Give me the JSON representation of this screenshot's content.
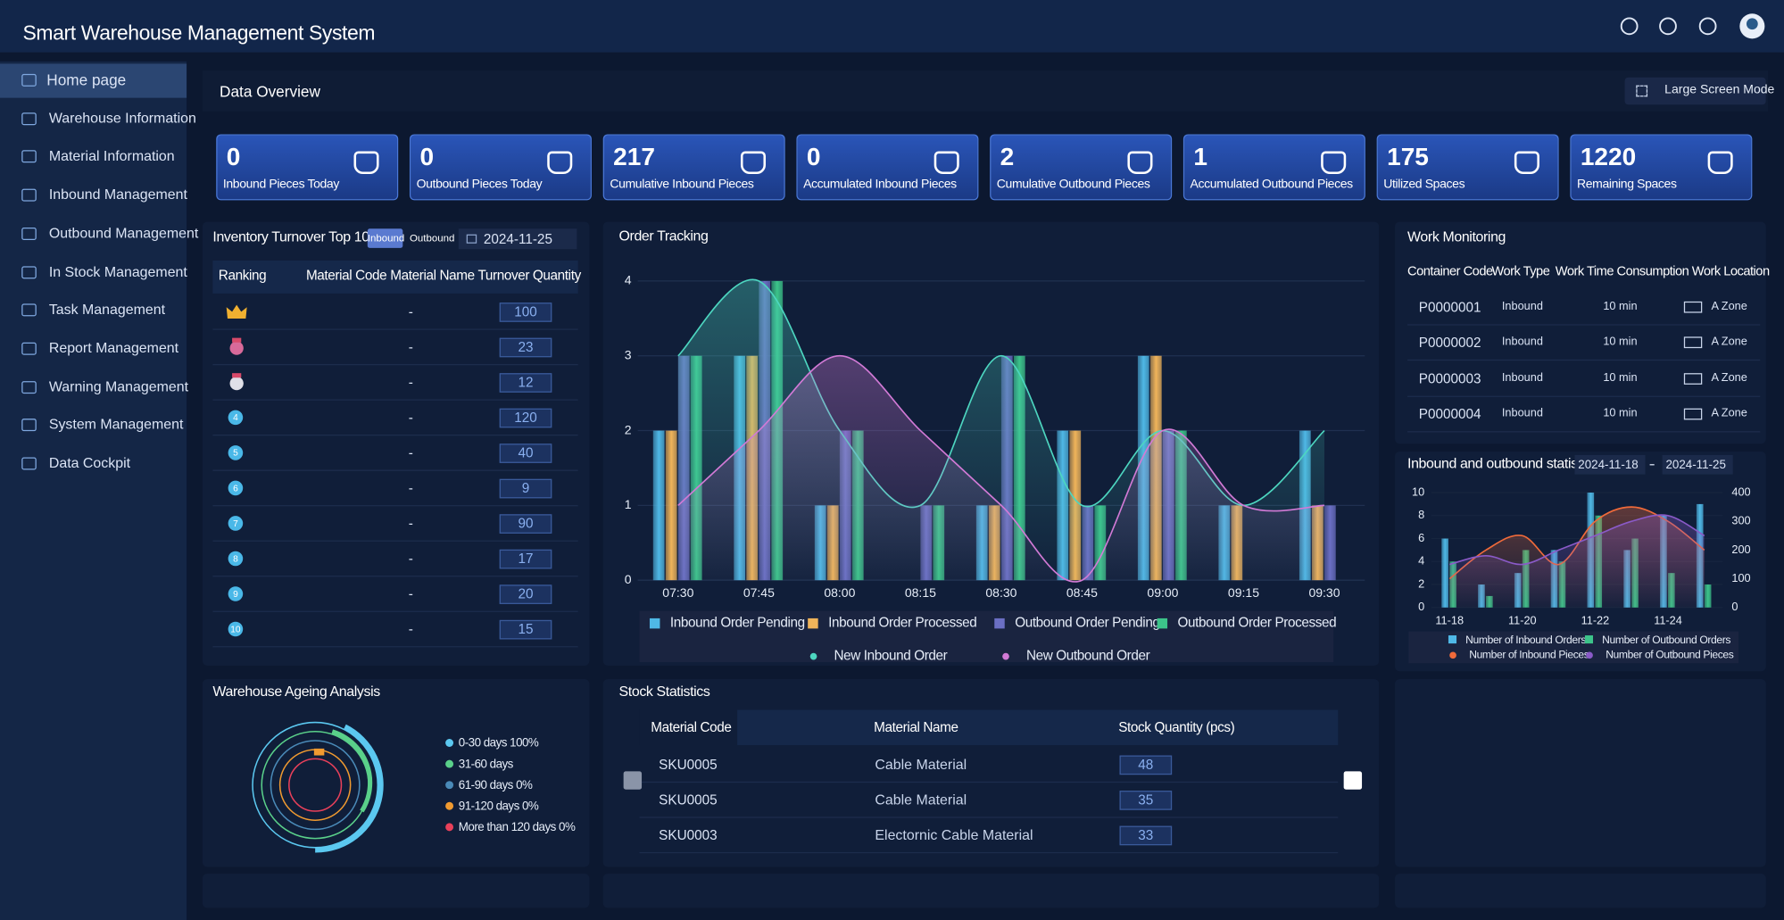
{
  "header": {
    "title": "Smart Warehouse Management System"
  },
  "sidebar": {
    "items": [
      "Home page",
      "Warehouse Information",
      "Material Information",
      "Inbound Management",
      "Outbound Management",
      "In Stock Management",
      "Task Management",
      "Report Management",
      "Warning Management",
      "System Management",
      "Data Cockpit"
    ],
    "active": 0
  },
  "overview": {
    "title": "Data Overview",
    "button": "Large Screen Mode",
    "cards": [
      {
        "value": 0,
        "label": "Inbound Pieces Today"
      },
      {
        "value": 0,
        "label": "Outbound Pieces Today"
      },
      {
        "value": 217,
        "label": "Cumulative Inbound Pieces"
      },
      {
        "value": 0,
        "label": "Accumulated Inbound Pieces"
      },
      {
        "value": 2,
        "label": "Cumulative Outbound Pieces"
      },
      {
        "value": 1,
        "label": "Accumulated Outbound Pieces"
      },
      {
        "value": 175,
        "label": "Utilized Spaces"
      },
      {
        "value": 1220,
        "label": "Remaining Spaces"
      }
    ]
  },
  "inventory": {
    "title": "Inventory Turnover Top 10",
    "tabs": [
      "Inbound",
      "Outbound"
    ],
    "date": "2024-11-25",
    "columns": [
      "Ranking",
      "Material Code",
      "Material Name",
      "Turnover Quantity"
    ],
    "rows": [
      {
        "name": "-",
        "quantity": 100
      },
      {
        "name": "-",
        "quantity": 23
      },
      {
        "name": "-",
        "quantity": 12
      },
      {
        "rank": 4,
        "name": "-",
        "quantity": 120
      },
      {
        "rank": 5,
        "name": "-",
        "quantity": 40
      },
      {
        "rank": 6,
        "name": "-",
        "quantity": 9
      },
      {
        "rank": 7,
        "name": "-",
        "quantity": 90
      },
      {
        "rank": 8,
        "name": "-",
        "quantity": 17
      },
      {
        "rank": 9,
        "name": "-",
        "quantity": 20
      },
      {
        "rank": 10,
        "name": "-",
        "quantity": 15
      }
    ]
  },
  "work_monitoring": {
    "title": "Work Monitoring",
    "columns": [
      "Container Code",
      "Work Type",
      "Work Time Consumption",
      "Work Location"
    ],
    "rows": [
      [
        "P0000001",
        "Inbound",
        "10 min",
        "A Zone"
      ],
      [
        "P0000002",
        "Inbound",
        "10 min",
        "A Zone"
      ],
      [
        "P0000003",
        "Inbound",
        "10 min",
        "A Zone"
      ],
      [
        "P0000004",
        "Inbound",
        "10 min",
        "A Zone"
      ]
    ]
  },
  "ageing": {
    "title": "Warehouse Ageing Analysis",
    "legend": [
      {
        "label": "0-30 days 100%",
        "color": "#5bc8f0"
      },
      {
        "label": "31-60 days",
        "color": "#5ad08a"
      },
      {
        "label": "61-90 days 0%",
        "color": "#4a8ab8"
      },
      {
        "label": "91-120 days 0%",
        "color": "#f09a30"
      },
      {
        "label": "More than 120 days 0%",
        "color": "#e8405a"
      }
    ]
  },
  "stock": {
    "title": "Stock Statistics",
    "columns": [
      "Material Code",
      "Material Name",
      "Stock Quantity (pcs)"
    ],
    "rows": [
      [
        "SKU0005",
        "Cable Material",
        48
      ],
      [
        "SKU0005",
        "Cable Material",
        35
      ],
      [
        "SKU0003",
        "Electornic Cable Material",
        33
      ]
    ]
  },
  "chart_data": [
    {
      "type": "bar",
      "title": "Order Tracking",
      "categories": [
        "07:30",
        "07:45",
        "08:00",
        "08:15",
        "08:30",
        "08:45",
        "09:00",
        "09:15",
        "09:30"
      ],
      "ylim": [
        0,
        4
      ],
      "yticks": [
        0,
        1,
        2,
        3,
        4
      ],
      "grid": true,
      "series": [
        {
          "name": "Inbound Order Pending",
          "color": "#4fb8e6",
          "values": [
            2,
            3,
            1,
            0,
            1,
            2,
            3,
            1,
            2
          ]
        },
        {
          "name": "Inbound Order Processed",
          "color": "#f0b45a",
          "values": [
            2,
            3,
            1,
            0,
            1,
            2,
            3,
            1,
            1
          ]
        },
        {
          "name": "Outbound Order Pending",
          "color": "#6b6fc4",
          "values": [
            3,
            4,
            2,
            1,
            3,
            1,
            2,
            0,
            1
          ]
        },
        {
          "name": "Outbound Order Processed",
          "color": "#3cc48a",
          "values": [
            3,
            4,
            2,
            1,
            3,
            1,
            2,
            0,
            0
          ]
        },
        {
          "name": "New Inbound Order",
          "type": "line",
          "color": "#4dd6c0",
          "values": [
            3,
            4,
            2,
            1,
            3,
            1,
            2,
            1,
            2
          ]
        },
        {
          "name": "New Outbound Order",
          "type": "line",
          "color": "#d27ad6",
          "values": [
            1,
            2,
            3,
            2,
            1,
            0,
            2,
            1,
            1
          ]
        }
      ]
    },
    {
      "type": "bar",
      "title": "Inbound and outbound statistics",
      "date_range": [
        "2024-11-18",
        "2024-11-25"
      ],
      "categories": [
        "11-18",
        null,
        "11-20",
        null,
        "11-22",
        null,
        "11-24",
        null
      ],
      "ylim": [
        0,
        10
      ],
      "yticks": [
        0,
        2,
        4,
        6,
        8,
        10
      ],
      "y2lim": [
        0,
        400
      ],
      "y2ticks": [
        0,
        100,
        200,
        300,
        400
      ],
      "series": [
        {
          "name": "Number of Inbound Orders",
          "color": "#4fb8e6",
          "values": [
            6,
            2,
            3,
            5,
            10,
            5,
            8,
            9
          ]
        },
        {
          "name": "Number of Outbound Orders",
          "color": "#3cc48a",
          "values": [
            4,
            1,
            5,
            4,
            8,
            6,
            3,
            2
          ]
        },
        {
          "name": "Number of Inbound Pieces",
          "type": "line",
          "axis": "y2",
          "color": "#f06a3a",
          "values": [
            100,
            200,
            250,
            150,
            300,
            350,
            300,
            200
          ]
        },
        {
          "name": "Number of Outbound Pieces",
          "type": "line",
          "axis": "y2",
          "color": "#8a5ac8",
          "values": [
            150,
            180,
            150,
            200,
            250,
            300,
            320,
            250
          ]
        }
      ]
    }
  ]
}
